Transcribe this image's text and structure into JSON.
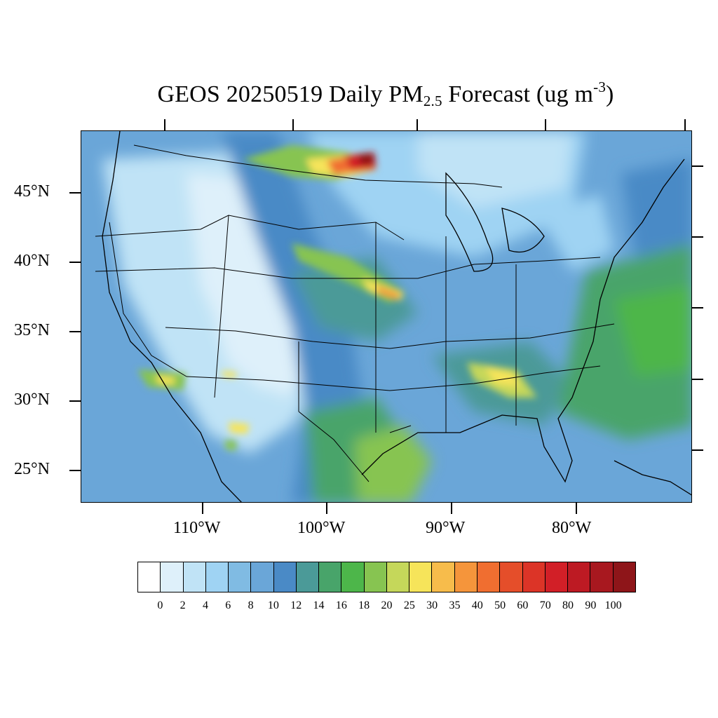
{
  "title": {
    "main": "GEOS 20250519 Daily PM",
    "subscript": "2.5",
    "rest": " Forecast (ug m",
    "superscript": "-3",
    "close": ")"
  },
  "map": {
    "region": "Contiguous United States",
    "lat_labels": [
      "45°N",
      "40°N",
      "35°N",
      "30°N",
      "25°N"
    ],
    "lon_labels": [
      "110°W",
      "100°W",
      "90°W",
      "80°W"
    ]
  },
  "colorbar": {
    "labels": [
      "0",
      "2",
      "4",
      "6",
      "8",
      "10",
      "12",
      "14",
      "16",
      "18",
      "20",
      "25",
      "30",
      "35",
      "40",
      "50",
      "60",
      "70",
      "80",
      "90",
      "100"
    ],
    "colors": [
      "#ffffff",
      "#def0fa",
      "#c0e3f6",
      "#9fd3f3",
      "#80bbe3",
      "#6aa6d8",
      "#4a8ac6",
      "#4b9a98",
      "#48a46a",
      "#4db64a",
      "#87c451",
      "#c5d75a",
      "#f6e45a",
      "#f7bc4b",
      "#f5953b",
      "#f06e30",
      "#e54e2a",
      "#dc3427",
      "#d21f27",
      "#bd1a23",
      "#a8181f",
      "#8e1519"
    ]
  }
}
